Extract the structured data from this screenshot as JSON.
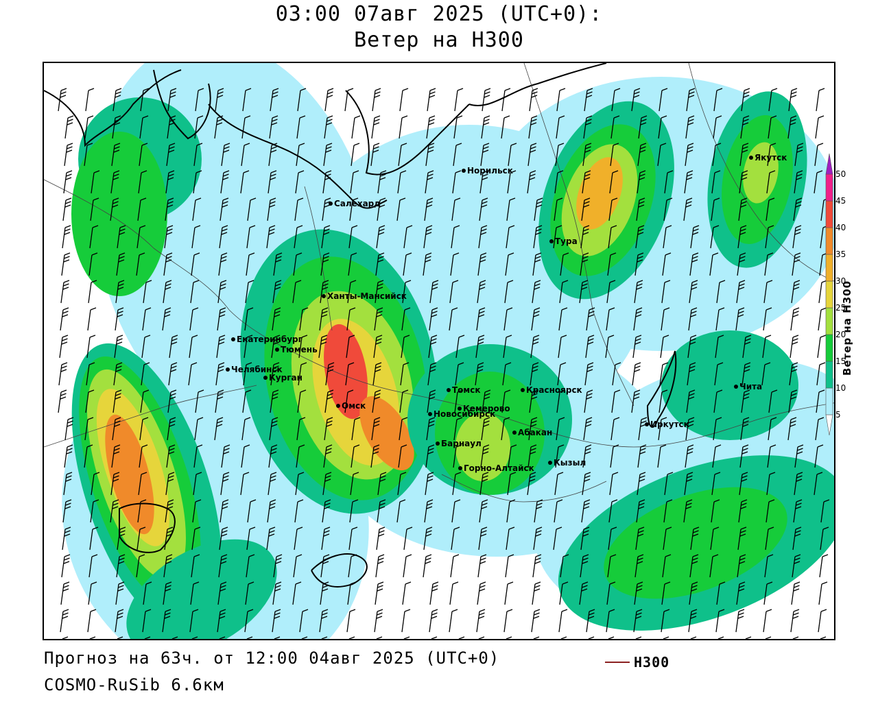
{
  "header": {
    "title_line1": "03:00 07авг 2025 (UTC+0):",
    "title_line2": "Ветер на H300"
  },
  "legend": {
    "title": "Ветер на H300",
    "bins": [
      {
        "min": 5,
        "max": 10,
        "color": "#b0eefb"
      },
      {
        "min": 10,
        "max": 15,
        "color": "#0fc08a"
      },
      {
        "min": 15,
        "max": 20,
        "color": "#16cc3a"
      },
      {
        "min": 20,
        "max": 25,
        "color": "#a3e03e"
      },
      {
        "min": 25,
        "max": 30,
        "color": "#e6d53b"
      },
      {
        "min": 30,
        "max": 35,
        "color": "#f0b02a"
      },
      {
        "min": 35,
        "max": 40,
        "color": "#f08a2a"
      },
      {
        "min": 40,
        "max": 45,
        "color": "#f04a3a"
      },
      {
        "min": 45,
        "max": 50,
        "color": "#f0208a"
      },
      {
        "min": 50,
        "max": null,
        "color": "#a020c0"
      }
    ],
    "tick_labels": [
      "5",
      "10",
      "15",
      "20",
      "25",
      "30",
      "35",
      "40",
      "45",
      "50"
    ]
  },
  "cities": [
    {
      "name": "Норильск"
    },
    {
      "name": "Якутск"
    },
    {
      "name": "Салехард"
    },
    {
      "name": "Тура"
    },
    {
      "name": "Ханты-Мансийск"
    },
    {
      "name": "Екатеринбург"
    },
    {
      "name": "Тюмень"
    },
    {
      "name": "Челябинск"
    },
    {
      "name": "Курган"
    },
    {
      "name": "Омск"
    },
    {
      "name": "Новосибирск"
    },
    {
      "name": "Томск"
    },
    {
      "name": "Красноярск"
    },
    {
      "name": "Кемерово"
    },
    {
      "name": "Абакан"
    },
    {
      "name": "Барнаул"
    },
    {
      "name": "Горно-Алтайск"
    },
    {
      "name": "Кызыл"
    },
    {
      "name": "Иркутск"
    },
    {
      "name": "Чита"
    }
  ],
  "footer": {
    "forecast": "Прогноз на 63ч. от 12:00 04авг 2025 (UTC+0)",
    "model": "COSMO-RuSib 6.6км",
    "contour_key": "H300",
    "contour_color": "#8b2020"
  }
}
